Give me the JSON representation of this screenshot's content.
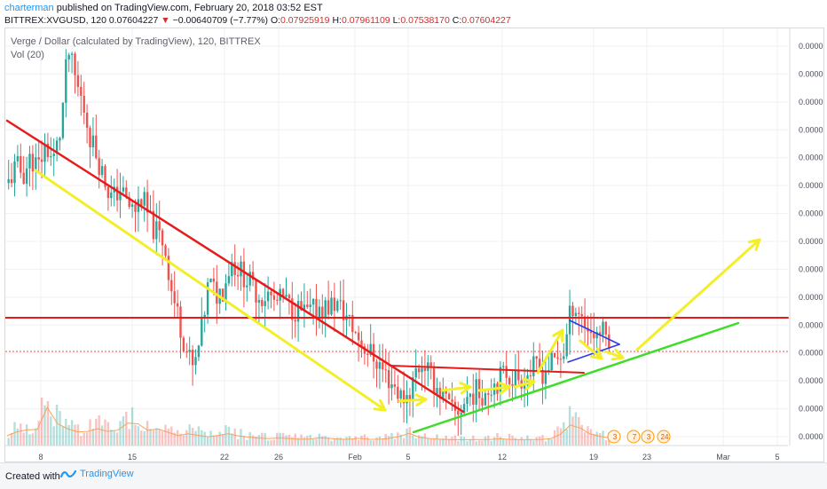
{
  "header": {
    "author": "charterman",
    "published_text": "published on TradingView.com, February 20, 2018 03:52 EST",
    "symbol": "BITTREX:XVGUSD, 120",
    "last": "0.07604227",
    "change_arrow": "▼",
    "change": "−0.00640709 (−7.77%)",
    "open_label": "O:",
    "open": "0.07925919",
    "high_label": "H:",
    "high": "0.07961109",
    "low_label": "L:",
    "low": "0.07538170",
    "close_label": "C:",
    "close": "0.07604227"
  },
  "legend": {
    "title": "Verge / Dollar (calculated by TradingView), 120, BITTREX",
    "volume": "Vol (20)"
  },
  "footer": {
    "created_with": "Created with",
    "brand": "TradingView"
  },
  "colors": {
    "bull": "#26a69a",
    "bear": "#ef5350",
    "trend_red": "#e81b1b",
    "trend_green": "#3fdc2a",
    "arrow_yellow": "#f2ef2a",
    "pennant_blue": "#2b3be8"
  },
  "chart_data": {
    "type": "candlestick",
    "x_tick_labels": [
      "8",
      "15",
      "22",
      "26",
      "Feb",
      "5",
      "12",
      "19",
      "23",
      "Mar",
      "5"
    ],
    "y_tick_labels": [
      "0.0000",
      "0.0000",
      "0.0000",
      "0.0000",
      "0.0000",
      "0.0000",
      "0.0000",
      "0.0000",
      "0.0000",
      "0.0000",
      "0.0000",
      "0.0000",
      "0.0000",
      "0.0000",
      "0.0000"
    ],
    "price_path": [
      0.148,
      0.156,
      0.152,
      0.16,
      0.155,
      0.166,
      0.158,
      0.172,
      0.21,
      0.196,
      0.185,
      0.17,
      0.16,
      0.149,
      0.14,
      0.146,
      0.138,
      0.135,
      0.142,
      0.13,
      0.125,
      0.12,
      0.098,
      0.084,
      0.07,
      0.06,
      0.078,
      0.102,
      0.096,
      0.099,
      0.112,
      0.108,
      0.104,
      0.099,
      0.095,
      0.096,
      0.092,
      0.094,
      0.09,
      0.089,
      0.087,
      0.088,
      0.091,
      0.09,
      0.092,
      0.089,
      0.083,
      0.077,
      0.072,
      0.068,
      0.064,
      0.058,
      0.054,
      0.048,
      0.05,
      0.061,
      0.065,
      0.057,
      0.052,
      0.046,
      0.04,
      0.043,
      0.049,
      0.051,
      0.05,
      0.054,
      0.056,
      0.06,
      0.058,
      0.057,
      0.059,
      0.062,
      0.06,
      0.063,
      0.066,
      0.07,
      0.092,
      0.088,
      0.081,
      0.078,
      0.079,
      0.076
    ],
    "volume_path": [
      0.2,
      0.3,
      0.25,
      0.35,
      0.3,
      0.9,
      0.6,
      0.4,
      0.35,
      0.3,
      0.25,
      0.3,
      0.35,
      0.3,
      0.28,
      0.32,
      0.45,
      0.5,
      0.4,
      0.3,
      0.35,
      0.3,
      0.25,
      0.2,
      0.25,
      0.22,
      0.2,
      0.18,
      0.2,
      0.22,
      0.25,
      0.2,
      0.18,
      0.16,
      0.15,
      0.14,
      0.15,
      0.16,
      0.14,
      0.13,
      0.12,
      0.14,
      0.16,
      0.15,
      0.14,
      0.12,
      0.13,
      0.15,
      0.14,
      0.12,
      0.13,
      0.14,
      0.16,
      0.2,
      0.25,
      0.18,
      0.15,
      0.14,
      0.13,
      0.12,
      0.12,
      0.12,
      0.12,
      0.12,
      0.13,
      0.12,
      0.14,
      0.13,
      0.12,
      0.12,
      0.12,
      0.13,
      0.12,
      0.14,
      0.2,
      0.3,
      0.5,
      0.35,
      0.25,
      0.2,
      0.18,
      0.15
    ],
    "candle_count": 200,
    "horizontal_resistance_y": 0.09,
    "last_price_y": 0.078,
    "event_markers": [
      "3",
      "7",
      "3",
      "24"
    ]
  }
}
